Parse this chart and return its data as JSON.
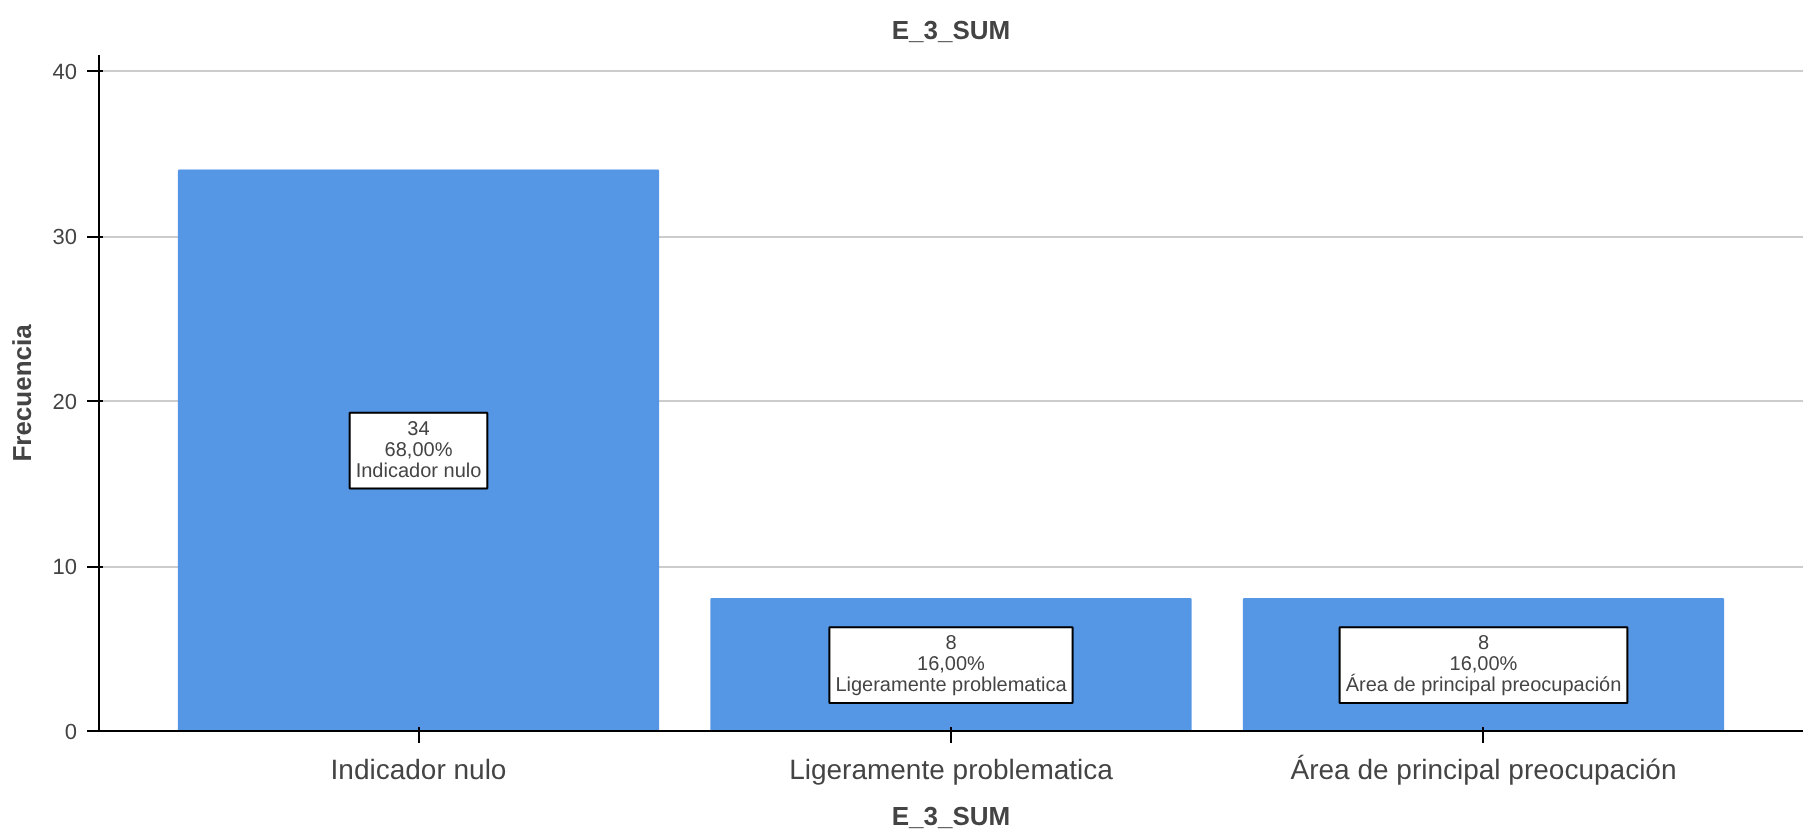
{
  "chart_data": {
    "type": "bar",
    "title": "E_3_SUM",
    "xlabel": "E_3_SUM",
    "ylabel": "Frecuencia",
    "categories": [
      "Indicador nulo",
      "Ligeramente problematica",
      "Área de principal preocupación"
    ],
    "values": [
      34,
      8,
      8
    ],
    "color": "#5596e5",
    "value_labels": [
      "34\n68,00%\nIndicador nulo",
      "8\n16,00%\nLigeramente problematica",
      "8\n16,00%\nÁrea de principal preocupación"
    ],
    "ylim": [
      0,
      41
    ],
    "yticks": [
      0,
      10,
      20,
      30,
      40
    ],
    "grid": "y"
  }
}
